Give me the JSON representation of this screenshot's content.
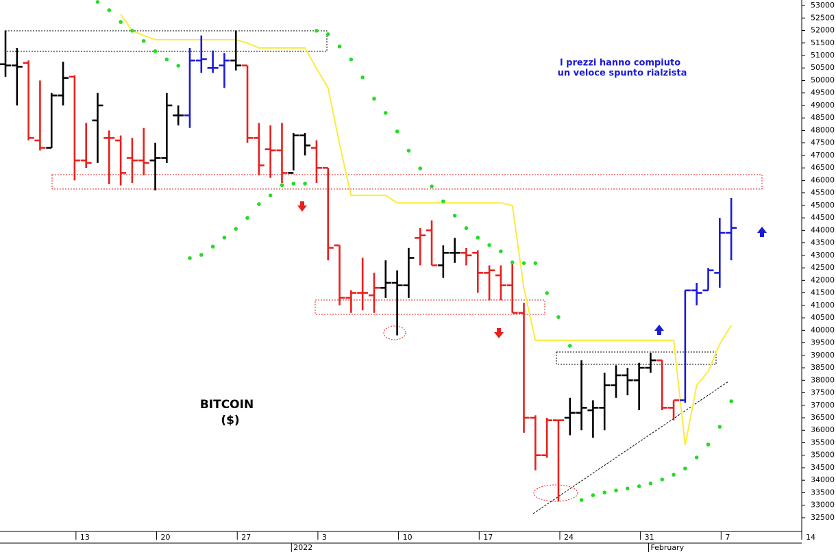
{
  "chart_data": {
    "type": "ohlc",
    "title": "BITCOIN",
    "subtitle": "($)",
    "annotations": [
      "I prezzi hanno compiuto",
      "un veloce spunto rialzista"
    ],
    "categories": [
      null,
      null,
      null,
      null,
      null,
      null,
      "13",
      null,
      null,
      null,
      null,
      null,
      null,
      "20",
      null,
      null,
      null,
      null,
      null,
      null,
      "27",
      null,
      null,
      null,
      null,
      null,
      null,
      "3",
      null,
      null,
      null,
      null,
      null,
      null,
      "10",
      null,
      null,
      null,
      null,
      null,
      null,
      "17",
      null,
      null,
      null,
      null,
      null,
      null,
      "24",
      null,
      null,
      null,
      null,
      null,
      null,
      "31",
      null,
      null,
      null,
      null,
      null,
      null,
      "7",
      null,
      null,
      null,
      null,
      null,
      null,
      "14"
    ],
    "x_period_labels": [
      null,
      null,
      null,
      null,
      null,
      null,
      null,
      null,
      null,
      null,
      null,
      null,
      null,
      null,
      null,
      null,
      null,
      null,
      null,
      null,
      null,
      null,
      null,
      null,
      null,
      "2022",
      null,
      null,
      null,
      null,
      null,
      null,
      null,
      null,
      null,
      null,
      null,
      null,
      null,
      null,
      null,
      null,
      null,
      null,
      null,
      null,
      null,
      null,
      null,
      null,
      null,
      null,
      null,
      null,
      null,
      null,
      "February",
      null,
      null,
      null,
      null,
      null,
      null,
      null,
      null,
      null,
      null,
      null,
      null,
      null
    ],
    "series": [
      {
        "open": [
          50650,
          50600,
          50700,
          47600,
          47300,
          49400,
          50150,
          46800,
          48400,
          47700,
          47600,
          46900,
          46800,
          46800,
          46900,
          48600,
          48600,
          50800,
          50500,
          50600,
          50800,
          50600,
          47700,
          47250,
          47200,
          46300,
          47800,
          47300,
          46500,
          43400,
          41300,
          41500,
          41400,
          41700,
          41900,
          41800,
          43700,
          44000,
          42600,
          43100,
          43100,
          43100,
          42300,
          42200,
          41800,
          40700,
          36500,
          35000,
          36400,
          36500,
          36700,
          36800,
          36900,
          37800,
          38200,
          38000,
          38500,
          38800,
          36900,
          37200,
          41600,
          41600,
          42300,
          43900,
          null,
          null,
          null,
          null,
          null,
          null
        ],
        "high": [
          52000,
          51300,
          50800,
          50000,
          49500,
          50750,
          50200,
          48300,
          49500,
          48000,
          47800,
          47700,
          48100,
          47500,
          49500,
          49000,
          51300,
          51800,
          51200,
          51100,
          52000,
          50600,
          48300,
          48200,
          48300,
          47900,
          47900,
          47600,
          46500,
          43400,
          41600,
          42900,
          42300,
          42800,
          42400,
          43300,
          44100,
          44400,
          43400,
          43700,
          43300,
          43200,
          42600,
          42600,
          42700,
          41100,
          36600,
          36500,
          36400,
          37300,
          38800,
          37200,
          38300,
          38600,
          38500,
          38700,
          39100,
          38800,
          37200,
          41600,
          41900,
          42500,
          44500,
          45300,
          null,
          null,
          null,
          null,
          null,
          null
        ],
        "low": [
          50150,
          49000,
          47600,
          47200,
          47300,
          49000,
          46000,
          46500,
          46700,
          45850,
          45800,
          45900,
          46200,
          45600,
          46700,
          48200,
          48100,
          50300,
          50300,
          49700,
          50400,
          47500,
          46200,
          46100,
          45900,
          46400,
          47000,
          45900,
          42800,
          41000,
          40700,
          40800,
          40700,
          41300,
          39800,
          41300,
          42600,
          42600,
          42100,
          42700,
          42600,
          41500,
          41200,
          41200,
          40700,
          35900,
          34400,
          34900,
          33150,
          35800,
          36000,
          35700,
          36000,
          37300,
          37400,
          36800,
          38300,
          36800,
          36400,
          37100,
          41000,
          41600,
          41700,
          42800,
          null,
          null,
          null,
          null,
          null,
          null
        ],
        "close": [
          50600,
          50550,
          47700,
          47300,
          49400,
          50100,
          46800,
          46700,
          49000,
          47700,
          46300,
          46800,
          46700,
          46900,
          49000,
          48600,
          50800,
          50850,
          50500,
          50800,
          50600,
          47700,
          46600,
          47200,
          46300,
          47800,
          47400,
          46500,
          43300,
          41300,
          41500,
          41500,
          41700,
          41900,
          41800,
          42900,
          43800,
          42600,
          43100,
          43100,
          43000,
          42300,
          42400,
          41800,
          40700,
          36500,
          35000,
          36400,
          36400,
          36700,
          36900,
          36900,
          37800,
          38200,
          38000,
          38500,
          38800,
          36900,
          37200,
          41600,
          41500,
          42400,
          43900,
          44100,
          null,
          null,
          null,
          null,
          null,
          null
        ],
        "colors": [
          "#000000",
          "#000000",
          "#e8201c",
          "#e8201c",
          "#000000",
          "#000000",
          "#e8201c",
          "#e8201c",
          "#000000",
          "#e8201c",
          "#e8201c",
          "#e8201c",
          "#e8201c",
          "#000000",
          "#000000",
          "#000000",
          "#1a1ad8",
          "#1a1ad8",
          "#1a1ad8",
          "#1a1ad8",
          "#000000",
          "#e8201c",
          "#e8201c",
          "#e8201c",
          "#e8201c",
          "#000000",
          "#000000",
          "#e8201c",
          "#e8201c",
          "#e8201c",
          "#e8201c",
          "#e8201c",
          "#e8201c",
          "#000000",
          "#000000",
          "#000000",
          "#e8201c",
          "#e8201c",
          "#000000",
          "#000000",
          "#e8201c",
          "#e8201c",
          "#e8201c",
          "#e8201c",
          "#e8201c",
          "#e8201c",
          "#e8201c",
          "#e8201c",
          "#e8201c",
          "#000000",
          "#000000",
          "#000000",
          "#000000",
          "#000000",
          "#000000",
          "#000000",
          "#000000",
          "#e8201c",
          "#e8201c",
          "#1a1ad8",
          "#1a1ad8",
          "#1a1ad8",
          "#1a1ad8",
          "#1a1ad8",
          null,
          null,
          null,
          null,
          null,
          null
        ]
      }
    ],
    "indicators": [
      {
        "style": "line",
        "color": "#fbeb3a",
        "values": [
          null,
          null,
          null,
          null,
          null,
          null,
          null,
          null,
          null,
          null,
          52650,
          51990,
          51800,
          51630,
          51630,
          51630,
          51630,
          51630,
          51630,
          51630,
          51630,
          51500,
          51300,
          51300,
          51300,
          51300,
          51300,
          50480,
          49710,
          47460,
          45400,
          45400,
          45400,
          45400,
          45100,
          45100,
          45100,
          45100,
          45100,
          45100,
          45100,
          45100,
          45100,
          45100,
          45000,
          41700,
          39600,
          39600,
          39600,
          39600,
          39600,
          39600,
          39600,
          39600,
          39600,
          39600,
          39600,
          39600,
          39600,
          35400,
          37800,
          38350,
          39450,
          40200,
          null,
          null,
          null,
          null,
          null,
          null
        ]
      },
      {
        "style": "dots",
        "color": "#22dd22",
        "values": [
          null,
          null,
          null,
          null,
          null,
          null,
          null,
          null,
          53140,
          52810,
          52340,
          51990,
          51580,
          51170,
          50840,
          50590,
          42890,
          43020,
          43350,
          43710,
          44060,
          44500,
          45050,
          45400,
          45810,
          45870,
          45870,
          51990,
          51850,
          51360,
          50840,
          50120,
          49270,
          48700,
          47960,
          47190,
          46480,
          45760,
          45160,
          44590,
          44090,
          43710,
          43410,
          43160,
          42720,
          42690,
          42690,
          41490,
          40530,
          39380,
          33210,
          33400,
          33510,
          33590,
          33670,
          33760,
          33870,
          34030,
          34220,
          34470,
          34910,
          35430,
          36140,
          37160,
          null,
          null,
          null,
          null,
          null,
          null
        ]
      }
    ],
    "ylim": [
      31950,
      53220
    ],
    "yticks": [
      32500,
      33000,
      33500,
      34000,
      34500,
      35000,
      35500,
      36000,
      36500,
      37000,
      37500,
      38000,
      38500,
      39000,
      39500,
      40000,
      40500,
      41000,
      41500,
      42000,
      42500,
      43000,
      43500,
      44000,
      44500,
      45000,
      45500,
      46000,
      46500,
      47000,
      47500,
      48000,
      48500,
      49000,
      49500,
      50000,
      50500,
      51000,
      51500,
      52000,
      52500,
      53000
    ],
    "y_axis_side": "right"
  }
}
